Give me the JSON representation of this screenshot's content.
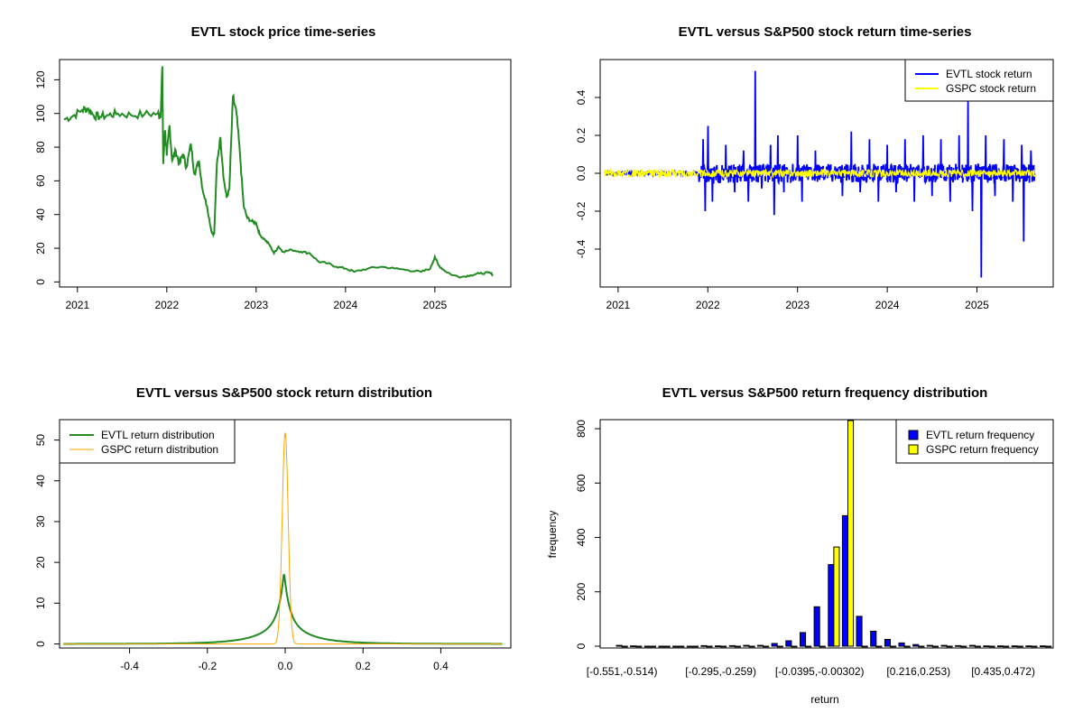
{
  "chart_data": [
    {
      "type": "line",
      "title": "EVTL stock price time-series",
      "xlabel": "",
      "ylabel": "",
      "xlim": [
        2020.8,
        2025.85
      ],
      "ylim": [
        -3,
        132
      ],
      "x_ticks": [
        2021,
        2022,
        2023,
        2024,
        2025
      ],
      "x_tick_labels": [
        "2021",
        "2022",
        "2023",
        "2024",
        "2025"
      ],
      "y_ticks": [
        0,
        20,
        40,
        60,
        80,
        100,
        120
      ],
      "y_tick_labels": [
        "0",
        "20",
        "40",
        "60",
        "80",
        "100",
        "120"
      ],
      "series": [
        {
          "name": "EVTL price",
          "color": "#228B22",
          "points": [
            [
              2020.85,
              96.5
            ],
            [
              2020.95,
              98.5
            ],
            [
              2021.05,
              102
            ],
            [
              2021.12,
              103
            ],
            [
              2021.18,
              99
            ],
            [
              2021.25,
              98
            ],
            [
              2021.35,
              99
            ],
            [
              2021.45,
              100
            ],
            [
              2021.6,
              99
            ],
            [
              2021.75,
              99.5
            ],
            [
              2021.9,
              100
            ],
            [
              2021.93,
              98
            ],
            [
              2021.95,
              128
            ],
            [
              2021.96,
              70
            ],
            [
              2021.98,
              90
            ],
            [
              2022.0,
              75
            ],
            [
              2022.03,
              93
            ],
            [
              2022.06,
              72
            ],
            [
              2022.1,
              78
            ],
            [
              2022.14,
              70
            ],
            [
              2022.18,
              76
            ],
            [
              2022.22,
              68
            ],
            [
              2022.27,
              82
            ],
            [
              2022.31,
              64
            ],
            [
              2022.36,
              72
            ],
            [
              2022.4,
              55
            ],
            [
              2022.45,
              45
            ],
            [
              2022.5,
              30
            ],
            [
              2022.53,
              28
            ],
            [
              2022.56,
              70
            ],
            [
              2022.6,
              86
            ],
            [
              2022.64,
              60
            ],
            [
              2022.67,
              50
            ],
            [
              2022.7,
              55
            ],
            [
              2022.74,
              110
            ],
            [
              2022.78,
              100
            ],
            [
              2022.82,
              75
            ],
            [
              2022.86,
              45
            ],
            [
              2022.9,
              38
            ],
            [
              2022.95,
              36
            ],
            [
              2023.0,
              35
            ],
            [
              2023.04,
              28
            ],
            [
              2023.1,
              25
            ],
            [
              2023.15,
              22
            ],
            [
              2023.2,
              17
            ],
            [
              2023.25,
              21
            ],
            [
              2023.3,
              18
            ],
            [
              2023.4,
              19
            ],
            [
              2023.5,
              18
            ],
            [
              2023.6,
              17
            ],
            [
              2023.7,
              12
            ],
            [
              2023.8,
              11
            ],
            [
              2023.9,
              9
            ],
            [
              2024.0,
              8
            ],
            [
              2024.1,
              6
            ],
            [
              2024.25,
              8
            ],
            [
              2024.4,
              9
            ],
            [
              2024.55,
              8
            ],
            [
              2024.7,
              7
            ],
            [
              2024.85,
              6
            ],
            [
              2024.95,
              8
            ],
            [
              2025.0,
              15
            ],
            [
              2025.04,
              10
            ],
            [
              2025.1,
              7
            ],
            [
              2025.2,
              4
            ],
            [
              2025.3,
              3
            ],
            [
              2025.4,
              4
            ],
            [
              2025.5,
              5
            ],
            [
              2025.6,
              5.5
            ],
            [
              2025.65,
              4.5
            ]
          ]
        }
      ]
    },
    {
      "type": "line",
      "title": "EVTL versus S&P500 stock return time-series",
      "xlim": [
        2020.8,
        2025.85
      ],
      "ylim": [
        -0.6,
        0.6
      ],
      "x_ticks": [
        2021,
        2022,
        2023,
        2024,
        2025
      ],
      "x_tick_labels": [
        "2021",
        "2022",
        "2023",
        "2024",
        "2025"
      ],
      "y_ticks": [
        -0.4,
        -0.2,
        0.0,
        0.2,
        0.4
      ],
      "y_tick_labels": [
        "-0.4",
        "-0.2",
        "0.0",
        "0.2",
        "0.4"
      ],
      "legend": {
        "position": "top-right",
        "entries": [
          "EVTL stock return",
          "GSPC stock return"
        ]
      },
      "series": [
        {
          "name": "EVTL stock return",
          "color": "#0000FF",
          "spikes": [
            [
              2021.95,
              0.18
            ],
            [
              2021.97,
              -0.2
            ],
            [
              2022.0,
              0.25
            ],
            [
              2022.05,
              -0.15
            ],
            [
              2022.2,
              0.15
            ],
            [
              2022.3,
              -0.1
            ],
            [
              2022.4,
              0.12
            ],
            [
              2022.45,
              -0.15
            ],
            [
              2022.53,
              0.54
            ],
            [
              2022.6,
              -0.08
            ],
            [
              2022.7,
              0.15
            ],
            [
              2022.74,
              -0.22
            ],
            [
              2022.78,
              0.2
            ],
            [
              2022.85,
              -0.1
            ],
            [
              2023.0,
              0.2
            ],
            [
              2023.05,
              -0.15
            ],
            [
              2023.2,
              0.12
            ],
            [
              2023.5,
              -0.12
            ],
            [
              2023.6,
              0.22
            ],
            [
              2023.7,
              -0.1
            ],
            [
              2023.8,
              0.18
            ],
            [
              2023.9,
              -0.15
            ],
            [
              2024.0,
              0.15
            ],
            [
              2024.1,
              -0.1
            ],
            [
              2024.2,
              0.18
            ],
            [
              2024.3,
              -0.15
            ],
            [
              2024.4,
              0.2
            ],
            [
              2024.5,
              -0.12
            ],
            [
              2024.6,
              0.18
            ],
            [
              2024.7,
              -0.15
            ],
            [
              2024.8,
              0.2
            ],
            [
              2024.9,
              0.38
            ],
            [
              2024.95,
              -0.2
            ],
            [
              2025.05,
              -0.55
            ],
            [
              2025.1,
              0.2
            ],
            [
              2025.2,
              -0.12
            ],
            [
              2025.3,
              0.18
            ],
            [
              2025.4,
              -0.15
            ],
            [
              2025.5,
              0.15
            ],
            [
              2025.52,
              -0.36
            ],
            [
              2025.6,
              0.12
            ],
            [
              2025.65,
              -0.05
            ]
          ]
        },
        {
          "name": "GSPC stock return",
          "color": "#FFFF00",
          "band": 0.02
        }
      ]
    },
    {
      "type": "line",
      "title": "EVTL versus S&P500 stock return distribution",
      "xlim": [
        -0.58,
        0.58
      ],
      "ylim": [
        -1,
        55
      ],
      "x_ticks": [
        -0.4,
        -0.2,
        0.0,
        0.2,
        0.4
      ],
      "x_tick_labels": [
        "-0.4",
        "-0.2",
        "0.0",
        "0.2",
        "0.4"
      ],
      "y_ticks": [
        0,
        10,
        20,
        30,
        40,
        50
      ],
      "y_tick_labels": [
        "0",
        "10",
        "20",
        "30",
        "40",
        "50"
      ],
      "legend": {
        "position": "top-left",
        "entries": [
          "EVTL return distribution",
          "GSPC return distribution"
        ]
      },
      "series": [
        {
          "name": "EVTL return distribution",
          "color": "#228B22",
          "x_range": [
            -0.57,
            0.56
          ],
          "peak": 17.8,
          "center": -0.003
        },
        {
          "name": "GSPC return distribution",
          "color": "#FFA500",
          "x_range": [
            -0.57,
            0.56
          ],
          "peak": 51.8,
          "sd": 0.0077
        }
      ]
    },
    {
      "type": "bar",
      "title": "EVTL versus S&P500 return frequency distribution",
      "xlabel": "return",
      "ylabel": "frequency",
      "ylim": [
        0,
        830
      ],
      "y_ticks": [
        0,
        200,
        400,
        600,
        800
      ],
      "y_tick_labels": [
        "0",
        "200",
        "400",
        "600",
        "800"
      ],
      "category_labels": [
        "[-0.551,-0.514)",
        "[-0.295,-0.259)",
        "[-0.0395,-0.00302)",
        "[0.216,0.253)",
        "[0.435,0.472)"
      ],
      "category_label_positions": [
        0,
        7,
        14,
        21,
        27
      ],
      "legend": {
        "position": "top-right",
        "entries": [
          "EVTL return frequency",
          "GSPC return frequency"
        ]
      },
      "series": [
        {
          "name": "EVTL return frequency",
          "color": "#0000FF",
          "values": [
            3,
            1,
            0,
            0,
            0,
            0,
            2,
            1,
            2,
            3,
            3,
            10,
            20,
            50,
            145,
            300,
            480,
            110,
            55,
            25,
            12,
            6,
            3,
            3,
            2,
            3,
            1,
            1,
            1,
            1,
            1
          ]
        },
        {
          "name": "GSPC return frequency",
          "color": "#FFFF00",
          "values": [
            0,
            0,
            0,
            0,
            0,
            0,
            0,
            0,
            0,
            0,
            0,
            0,
            0,
            0,
            0,
            365,
            830,
            0,
            0,
            0,
            0,
            0,
            0,
            0,
            0,
            0,
            0,
            0,
            0,
            0,
            0
          ]
        }
      ]
    }
  ]
}
